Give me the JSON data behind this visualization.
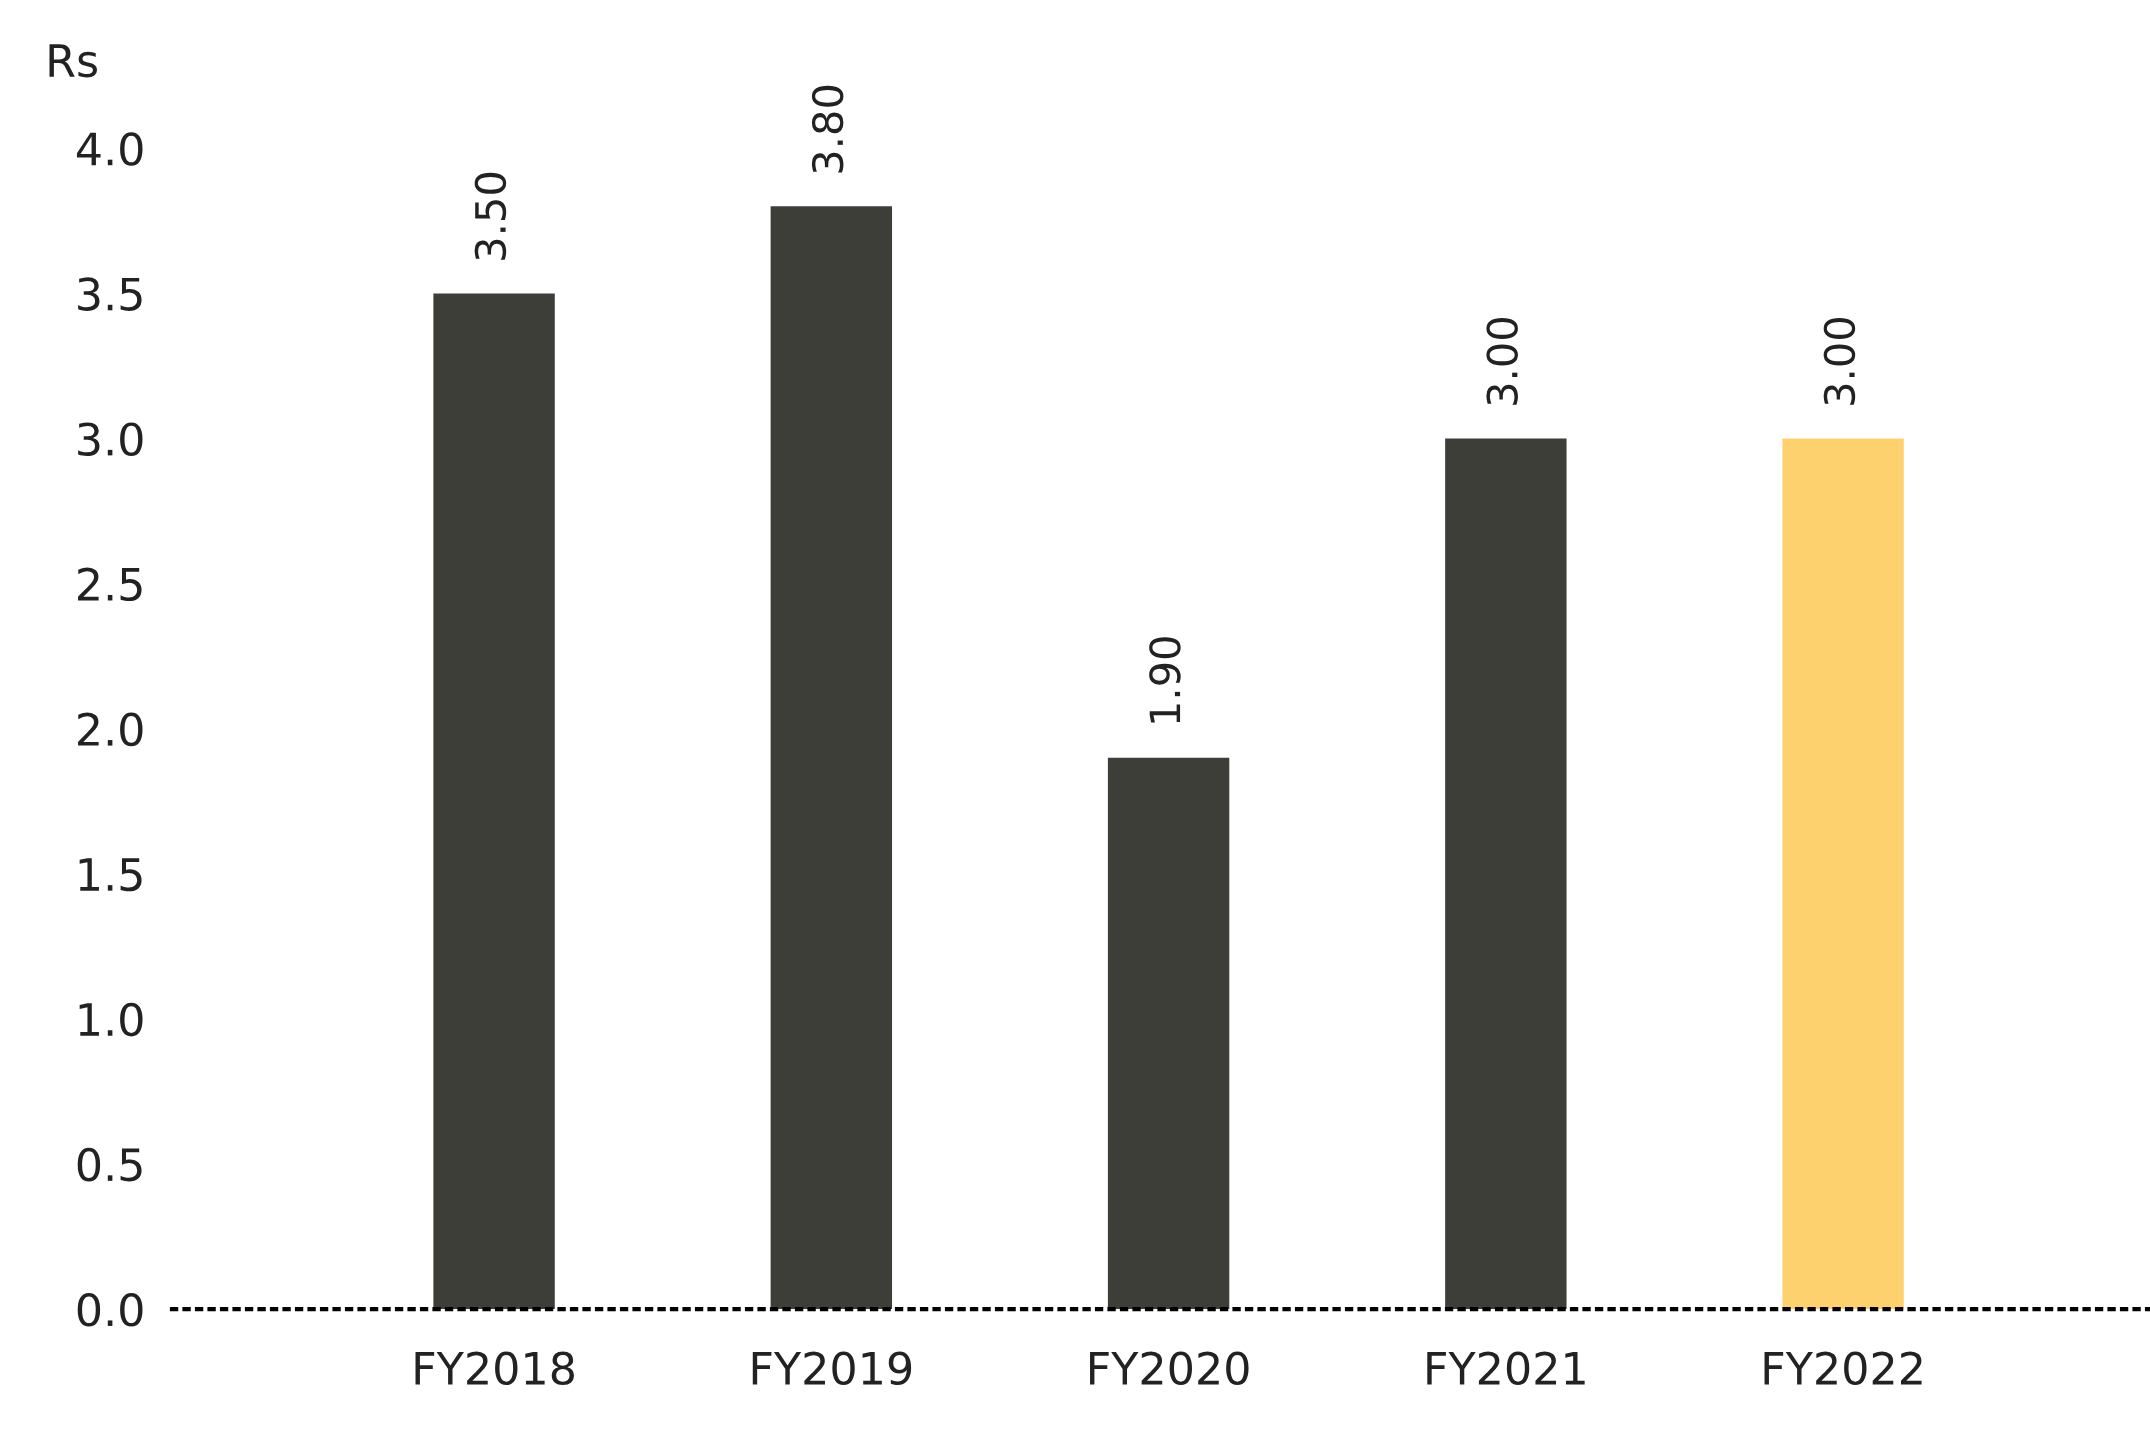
{
  "chart_data": {
    "type": "bar",
    "ylabel": "Rs",
    "categories": [
      "FY2018",
      "FY2019",
      "FY2020",
      "FY2021",
      "FY2022"
    ],
    "values": [
      3.5,
      3.8,
      1.9,
      3.0,
      3.0
    ],
    "colors": [
      "#3d3e38",
      "#3d3e38",
      "#3d3e38",
      "#3d3e38",
      "#fdd26e"
    ],
    "value_labels": [
      "3.50",
      "3.80",
      "1.90",
      "3.00",
      "3.00"
    ],
    "ylim": [
      0,
      4.0
    ],
    "yticks": [
      {
        "value": 0,
        "label": "0.0"
      },
      0.5,
      {
        "value": 1,
        "label": "1.0"
      },
      1.5,
      {
        "value": 2,
        "label": "2.0"
      },
      2.5,
      {
        "value": 3,
        "label": "3.0"
      },
      3.5,
      {
        "value": 4,
        "label": "4.0"
      }
    ],
    "grid": false,
    "legend": false
  }
}
